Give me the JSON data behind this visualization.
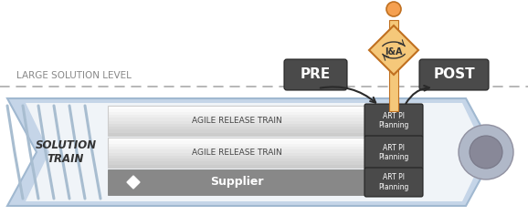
{
  "fig_width": 5.78,
  "fig_height": 2.36,
  "bg_color": "#ffffff",
  "large_solution_text": "LARGE SOLUTION LEVEL",
  "solution_train_text": "SOLUTION\nTRAIN",
  "art1_text": "AGILE RELEASE TRAIN",
  "art2_text": "AGILE RELEASE TRAIN",
  "supplier_text": "Supplier",
  "art_pi_text": "ART PI\nPlanning",
  "pre_text": "PRE",
  "post_text": "POST",
  "ia_text": "I&A",
  "train_outer_color": "#c5d5e8",
  "train_outer_edge": "#a0b8d0",
  "train_inner_color": "#f0f4f8",
  "art_pi_bg": "#4a4a4a",
  "pre_post_bg": "#4a4a4a",
  "ia_diamond_color": "#f5c87a",
  "ia_border_color": "#c07020",
  "person_color": "#f5a050",
  "arrow_color": "#2a2a2a",
  "dashed_line_color": "#aaaaaa",
  "stem_color": "#f5c87a",
  "supplier_bg": "#888888",
  "train_front_outer": "#b0b8c8",
  "train_front_inner": "#888898"
}
